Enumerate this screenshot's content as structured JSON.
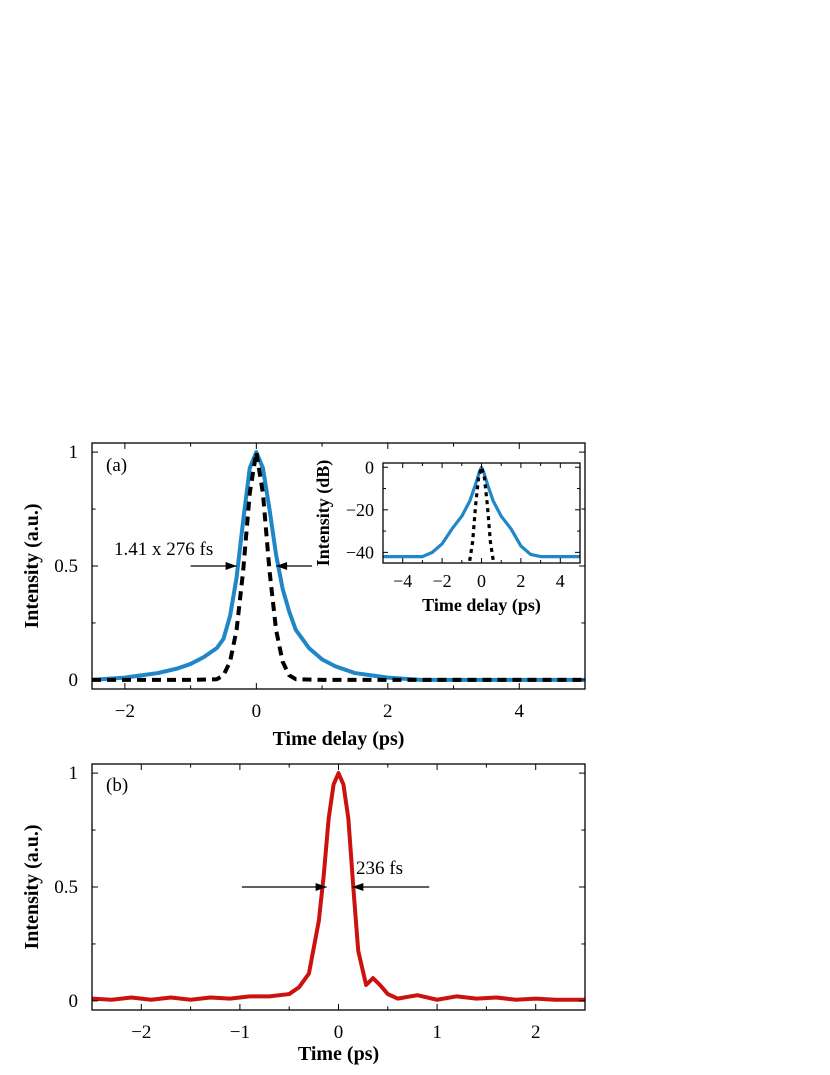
{
  "chart_data": [
    {
      "type": "line",
      "panel_label": "(a)",
      "xlabel": "Time delay (ps)",
      "ylabel": "Intensity (a.u.)",
      "xlim": [
        -2.5,
        5
      ],
      "ylim": [
        -0.04,
        1.04
      ],
      "xticks": [
        -2,
        0,
        2,
        4
      ],
      "yticks": [
        0,
        0.5,
        1
      ],
      "ytick_labels": [
        "0",
        "0.5",
        "1"
      ],
      "annotation": "1.41 x 276 fs",
      "grid": false,
      "series": [
        {
          "style": "solid",
          "color": "#1f86c8",
          "x": [
            -2.5,
            -2.0,
            -1.5,
            -1.2,
            -1.0,
            -0.8,
            -0.6,
            -0.5,
            -0.4,
            -0.3,
            -0.2,
            -0.1,
            0.0,
            0.1,
            0.2,
            0.3,
            0.4,
            0.5,
            0.6,
            0.8,
            1.0,
            1.2,
            1.5,
            2.0,
            2.5,
            3.0,
            4.0,
            5.0
          ],
          "y": [
            0.0,
            0.01,
            0.03,
            0.05,
            0.07,
            0.1,
            0.14,
            0.18,
            0.28,
            0.45,
            0.7,
            0.93,
            1.0,
            0.93,
            0.75,
            0.55,
            0.4,
            0.3,
            0.22,
            0.14,
            0.09,
            0.06,
            0.03,
            0.01,
            0.0,
            0.0,
            0.0,
            0.0
          ]
        },
        {
          "style": "dashed",
          "color": "#000000",
          "x": [
            -2.5,
            -1.0,
            -0.6,
            -0.5,
            -0.4,
            -0.3,
            -0.2,
            -0.1,
            0.0,
            0.1,
            0.2,
            0.3,
            0.4,
            0.5,
            0.6,
            1.0,
            5.0
          ],
          "y": [
            0.0,
            0.0,
            0.003,
            0.02,
            0.08,
            0.22,
            0.48,
            0.82,
            1.0,
            0.82,
            0.48,
            0.22,
            0.08,
            0.02,
            0.003,
            0.0,
            0.0
          ]
        }
      ]
    },
    {
      "type": "line",
      "panel_label": "",
      "xlabel": "Time delay (ps)",
      "ylabel": "Intensity (dB)",
      "xlim": [
        -5,
        5
      ],
      "ylim": [
        -45,
        2
      ],
      "xticks": [
        -4,
        -2,
        0,
        2,
        4
      ],
      "yticks": [
        -40,
        -20,
        0
      ],
      "ytick_labels": [
        "−40",
        "−20",
        "0"
      ],
      "grid": false,
      "series": [
        {
          "style": "solid",
          "color": "#1f86c8",
          "x": [
            -5.0,
            -4.0,
            -3.0,
            -2.5,
            -2.0,
            -1.5,
            -1.0,
            -0.6,
            -0.3,
            -0.1,
            0.0,
            0.1,
            0.3,
            0.6,
            1.0,
            1.5,
            2.0,
            2.5,
            3.0,
            4.0,
            5.0
          ],
          "y": [
            -42,
            -42,
            -42,
            -40,
            -36,
            -29,
            -23,
            -16,
            -8,
            -2,
            0,
            -2,
            -8,
            -16,
            -23,
            -29,
            -37,
            -41,
            -42,
            -42,
            -42
          ]
        },
        {
          "style": "dashed",
          "color": "#000000",
          "x": [
            -0.6,
            -0.45,
            -0.3,
            -0.15,
            0.0,
            0.15,
            0.3,
            0.45,
            0.6
          ],
          "y": [
            -44,
            -35,
            -18,
            -5,
            0,
            -5,
            -18,
            -35,
            -44
          ]
        }
      ]
    },
    {
      "type": "line",
      "panel_label": "(b)",
      "xlabel": "Time (ps)",
      "ylabel": "Intensity (a.u.)",
      "xlim": [
        -2.5,
        2.5
      ],
      "ylim": [
        -0.04,
        1.04
      ],
      "xticks": [
        -2,
        -1,
        0,
        1,
        2
      ],
      "yticks": [
        0,
        0.5,
        1
      ],
      "ytick_labels": [
        "0",
        "0.5",
        "1"
      ],
      "annotation": "236 fs",
      "grid": false,
      "series": [
        {
          "style": "solid",
          "color": "#cc1111",
          "x": [
            -2.5,
            -2.3,
            -2.1,
            -1.9,
            -1.7,
            -1.5,
            -1.3,
            -1.1,
            -0.9,
            -0.7,
            -0.5,
            -0.4,
            -0.3,
            -0.2,
            -0.15,
            -0.1,
            -0.05,
            0.0,
            0.05,
            0.1,
            0.15,
            0.2,
            0.28,
            0.35,
            0.42,
            0.5,
            0.6,
            0.8,
            1.0,
            1.2,
            1.4,
            1.6,
            1.8,
            2.0,
            2.2,
            2.5
          ],
          "y": [
            0.01,
            0.005,
            0.015,
            0.005,
            0.015,
            0.005,
            0.015,
            0.01,
            0.02,
            0.02,
            0.03,
            0.06,
            0.12,
            0.35,
            0.55,
            0.8,
            0.95,
            1.0,
            0.95,
            0.8,
            0.5,
            0.22,
            0.07,
            0.1,
            0.07,
            0.03,
            0.01,
            0.025,
            0.005,
            0.02,
            0.01,
            0.015,
            0.005,
            0.01,
            0.005,
            0.005
          ]
        }
      ]
    }
  ]
}
